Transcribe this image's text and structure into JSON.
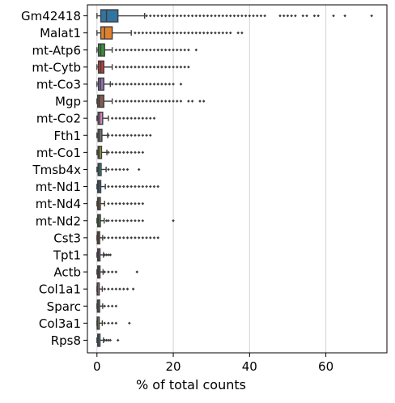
{
  "chart_data": {
    "type": "box",
    "orientation": "horizontal",
    "xlabel": "% of total counts",
    "ylabel": "",
    "title": "",
    "xlim": [
      -2.5,
      76
    ],
    "xticks": [
      0,
      20,
      40,
      60
    ],
    "grid": "vertical",
    "categories": [
      "Gm42418",
      "Malat1",
      "mt-Atp6",
      "mt-Cytb",
      "mt-Co3",
      "Mgp",
      "mt-Co2",
      "Fth1",
      "mt-Co1",
      "Tmsb4x",
      "mt-Nd1",
      "mt-Nd4",
      "mt-Nd2",
      "Cst3",
      "Tpt1",
      "Actb",
      "Col1a1",
      "Sparc",
      "Col3a1",
      "Rps8"
    ],
    "colors": [
      "#3274a1",
      "#e1812c",
      "#3a923a",
      "#c03d3e",
      "#9372b2",
      "#845b53",
      "#d684bd",
      "#7f7f7f",
      "#a9aa35",
      "#2ea7b7",
      "#3274a1",
      "#e1812c",
      "#3a923a",
      "#c03d3e",
      "#9372b2",
      "#845b53",
      "#d684bd",
      "#7f7f7f",
      "#a9aa35",
      "#2ea7b7"
    ],
    "boxes": [
      {
        "min": 0.0,
        "q1": 1.0,
        "median": 2.5,
        "q3": 5.5,
        "whisker_high": 12.5,
        "outliers": [
          13,
          14,
          15,
          16,
          17,
          18,
          19,
          20,
          21,
          22,
          23,
          24,
          25,
          26,
          27,
          28,
          29,
          30,
          31,
          32,
          33,
          34,
          35,
          36,
          37,
          38,
          39,
          40,
          41,
          42,
          43,
          44,
          48,
          49,
          50,
          51,
          52,
          54,
          55,
          57,
          58,
          62,
          65,
          72
        ]
      },
      {
        "min": 0.0,
        "q1": 1.0,
        "median": 2.0,
        "q3": 4.0,
        "whisker_high": 9.0,
        "outliers": [
          10,
          11,
          12,
          13,
          14,
          15,
          16,
          17,
          18,
          19,
          20,
          21,
          22,
          23,
          24,
          25,
          26,
          27,
          28,
          29,
          30,
          31,
          32,
          33,
          34,
          35,
          37,
          38
        ]
      },
      {
        "min": 0.0,
        "q1": 0.4,
        "median": 1.0,
        "q3": 2.0,
        "whisker_high": 4.0,
        "outliers": [
          5,
          6,
          7,
          8,
          9,
          10,
          11,
          12,
          13,
          14,
          15,
          16,
          17,
          18,
          19,
          20,
          21,
          22,
          23,
          24,
          26
        ]
      },
      {
        "min": 0.0,
        "q1": 0.4,
        "median": 1.0,
        "q3": 1.8,
        "whisker_high": 4.0,
        "outliers": [
          5,
          6,
          7,
          8,
          9,
          10,
          11,
          12,
          13,
          14,
          15,
          16,
          17,
          18,
          19,
          20,
          21,
          22,
          23,
          24
        ]
      },
      {
        "min": 0.0,
        "q1": 0.4,
        "median": 0.9,
        "q3": 1.8,
        "whisker_high": 3.5,
        "outliers": [
          4,
          5,
          6,
          7,
          8,
          9,
          10,
          11,
          12,
          13,
          14,
          15,
          16,
          17,
          18,
          19,
          20,
          22
        ]
      },
      {
        "min": 0.0,
        "q1": 0.2,
        "median": 0.6,
        "q3": 1.8,
        "whisker_high": 4.0,
        "outliers": [
          5,
          6,
          7,
          8,
          9,
          10,
          11,
          12,
          13,
          14,
          15,
          16,
          17,
          18,
          19,
          20,
          21,
          22,
          24,
          25,
          27,
          28
        ]
      },
      {
        "min": 0.0,
        "q1": 0.3,
        "median": 0.7,
        "q3": 1.5,
        "whisker_high": 3.0,
        "outliers": [
          4,
          5,
          6,
          7,
          8,
          9,
          10,
          11,
          12,
          13,
          14,
          15
        ]
      },
      {
        "min": 0.0,
        "q1": 0.3,
        "median": 0.7,
        "q3": 1.3,
        "whisker_high": 2.8,
        "outliers": [
          3,
          4,
          5,
          6,
          7,
          8,
          9,
          10,
          11,
          12,
          13,
          14
        ]
      },
      {
        "min": 0.0,
        "q1": 0.3,
        "median": 0.6,
        "q3": 1.2,
        "whisker_high": 2.6,
        "outliers": [
          3,
          4,
          5,
          6,
          7,
          8,
          9,
          10,
          11,
          12
        ]
      },
      {
        "min": 0.0,
        "q1": 0.3,
        "median": 0.6,
        "q3": 1.1,
        "whisker_high": 2.4,
        "outliers": [
          3,
          4,
          5,
          6,
          7,
          8,
          11
        ]
      },
      {
        "min": 0.0,
        "q1": 0.2,
        "median": 0.5,
        "q3": 1.0,
        "whisker_high": 2.2,
        "outliers": [
          3,
          4,
          5,
          6,
          7,
          8,
          9,
          10,
          11,
          12,
          13,
          14,
          15,
          16
        ]
      },
      {
        "min": 0.0,
        "q1": 0.2,
        "median": 0.5,
        "q3": 0.9,
        "whisker_high": 2.0,
        "outliers": [
          3,
          4,
          5,
          6,
          7,
          8,
          9,
          10,
          11,
          12
        ]
      },
      {
        "min": 0.0,
        "q1": 0.2,
        "median": 0.4,
        "q3": 0.9,
        "whisker_high": 1.9,
        "outliers": [
          2.5,
          3,
          4,
          5,
          6,
          7,
          8,
          9,
          10,
          11,
          12,
          20
        ]
      },
      {
        "min": 0.0,
        "q1": 0.1,
        "median": 0.3,
        "q3": 0.7,
        "whisker_high": 1.5,
        "outliers": [
          2,
          3,
          4,
          5,
          6,
          7,
          8,
          9,
          10,
          11,
          12,
          13,
          14,
          15,
          16
        ]
      },
      {
        "min": 0.0,
        "q1": 0.2,
        "median": 0.4,
        "q3": 0.8,
        "whisker_high": 1.7,
        "outliers": [
          2,
          2.5,
          3,
          3.5
        ]
      },
      {
        "min": 0.0,
        "q1": 0.2,
        "median": 0.4,
        "q3": 0.8,
        "whisker_high": 1.6,
        "outliers": [
          2,
          3,
          4,
          5,
          10.5
        ]
      },
      {
        "min": 0.0,
        "q1": 0.05,
        "median": 0.2,
        "q3": 0.6,
        "whisker_high": 1.4,
        "outliers": [
          2,
          3,
          4,
          5,
          6,
          7,
          8,
          9.5
        ]
      },
      {
        "min": 0.0,
        "q1": 0.1,
        "median": 0.3,
        "q3": 0.7,
        "whisker_high": 1.5,
        "outliers": [
          2,
          3,
          4,
          5
        ]
      },
      {
        "min": 0.0,
        "q1": 0.05,
        "median": 0.2,
        "q3": 0.6,
        "whisker_high": 1.4,
        "outliers": [
          2,
          3,
          4,
          5,
          8.5
        ]
      },
      {
        "min": 0.0,
        "q1": 0.2,
        "median": 0.4,
        "q3": 0.8,
        "whisker_high": 1.7,
        "outliers": [
          2,
          2.5,
          3,
          3.5,
          5.5
        ]
      }
    ]
  }
}
